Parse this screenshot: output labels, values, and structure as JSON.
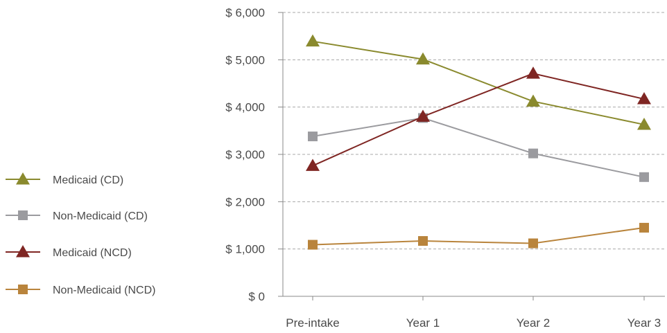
{
  "chart_data": {
    "type": "line",
    "categories": [
      "Pre-intake",
      "Year 1",
      "Year 2",
      "Year 3"
    ],
    "ylim": [
      0,
      6000
    ],
    "yticks": [
      {
        "value": 0,
        "label": "$ 0"
      },
      {
        "value": 1000,
        "label": "$ 1,000"
      },
      {
        "value": 2000,
        "label": "$ 2,000"
      },
      {
        "value": 3000,
        "label": "$ 3,000"
      },
      {
        "value": 4000,
        "label": "$ 4,000"
      },
      {
        "value": 5000,
        "label": "$ 5,000"
      },
      {
        "value": 6000,
        "label": "$ 6,000"
      }
    ],
    "grid": "horizontal dashed",
    "legend_position": "left",
    "series": [
      {
        "name": "Medicaid (CD)",
        "marker": "triangle",
        "color": "#8a8a2e",
        "values": [
          5390,
          5010,
          4120,
          3630
        ]
      },
      {
        "name": "Non-Medicaid (CD)",
        "marker": "square",
        "color": "#9b9b9f",
        "values": [
          3380,
          3770,
          3020,
          2520
        ]
      },
      {
        "name": "Medicaid (NCD)",
        "marker": "triangle",
        "color": "#7f2623",
        "values": [
          2760,
          3800,
          4710,
          4170
        ]
      },
      {
        "name": "Non-Medicaid (NCD)",
        "marker": "square",
        "color": "#b9843c",
        "values": [
          1090,
          1170,
          1120,
          1450
        ]
      }
    ]
  }
}
